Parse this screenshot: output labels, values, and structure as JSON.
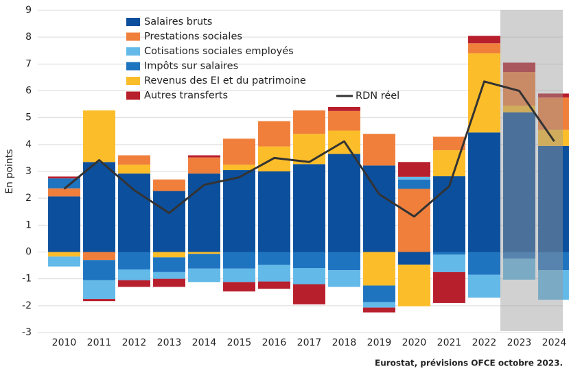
{
  "chart_data": {
    "type": "bar",
    "y_label": "En points",
    "source": "Eurostat, prévisions OFCE octobre 2023.",
    "categories": [
      "2010",
      "2011",
      "2012",
      "2013",
      "2014",
      "2015",
      "2016",
      "2017",
      "2018",
      "2019",
      "2020",
      "2021",
      "2022",
      "2023",
      "2024"
    ],
    "series": [
      {
        "name": "Salaires bruts",
        "color": "#0c4f9c",
        "values": [
          2.07,
          3.35,
          2.92,
          2.27,
          2.92,
          3.05,
          3.0,
          3.27,
          3.65,
          3.22,
          -0.47,
          2.82,
          4.45,
          5.2,
          3.95
        ]
      },
      {
        "name": "Prestations sociales",
        "color": "#f07f3c",
        "values": [
          0.3,
          -0.3,
          0.35,
          0.43,
          0.6,
          0.97,
          0.94,
          0.87,
          0.73,
          1.18,
          2.35,
          0.5,
          0.37,
          1.25,
          1.2
        ]
      },
      {
        "name": "Cotisations sociales employés",
        "color": "#63b9e8",
        "values": [
          -0.37,
          -0.7,
          -0.4,
          -0.25,
          -0.5,
          -0.5,
          -0.62,
          -0.6,
          -0.62,
          -0.2,
          0.1,
          -0.65,
          -0.85,
          -0.78,
          -1.1
        ]
      },
      {
        "name": "Impôts sur salaires",
        "color": "#1f74c0",
        "values": [
          0.37,
          -0.75,
          -0.65,
          -0.55,
          -0.55,
          -0.62,
          -0.48,
          -0.6,
          -0.68,
          -0.62,
          0.35,
          -0.1,
          -0.85,
          -0.25,
          -0.68
        ]
      },
      {
        "name": "Revenus des EI et du patrimoine",
        "color": "#fbbd2a",
        "values": [
          -0.17,
          1.92,
          0.33,
          -0.2,
          -0.07,
          0.2,
          0.93,
          1.13,
          0.87,
          -1.25,
          -1.55,
          0.97,
          2.95,
          0.25,
          0.6
        ]
      },
      {
        "name": "Autres transferts",
        "color": "#b81f2d",
        "values": [
          0.07,
          -0.08,
          -0.25,
          -0.3,
          0.08,
          -0.35,
          -0.27,
          -0.75,
          0.15,
          -0.18,
          0.55,
          -1.15,
          0.28,
          0.35,
          0.15
        ]
      }
    ],
    "line": {
      "name": "RDN réel",
      "color": "#333333",
      "values": [
        2.35,
        3.42,
        2.3,
        1.45,
        2.5,
        2.78,
        3.5,
        3.35,
        4.12,
        2.15,
        1.32,
        2.45,
        6.35,
        6.0,
        4.12
      ]
    },
    "ylim": [
      -3,
      9
    ],
    "yticks": [
      -3,
      -2,
      -1,
      0,
      1,
      2,
      3,
      4,
      5,
      6,
      7,
      8,
      9
    ],
    "grid": true
  }
}
